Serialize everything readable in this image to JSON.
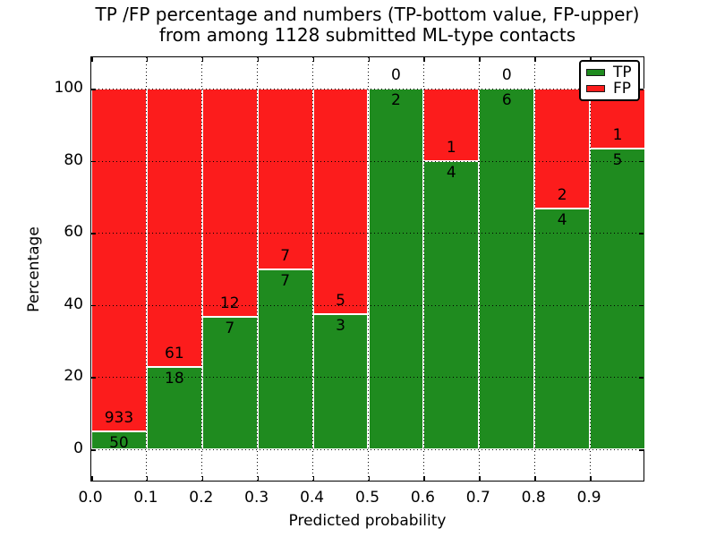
{
  "chart_data": {
    "type": "bar",
    "stacked": true,
    "title_lines": [
      "TP /FP percentage and numbers (TP-bottom value, FP-upper)",
      "from among 1128 submitted ML-type contacts"
    ],
    "xlabel": "Predicted probability",
    "ylabel": "Percentage",
    "bin_edges": [
      0.0,
      0.1,
      0.2,
      0.3,
      0.4,
      0.5,
      0.6,
      0.7,
      0.8,
      0.9,
      1.0
    ],
    "series": [
      {
        "name": "TP",
        "color": "#1f8b1f",
        "counts": [
          50,
          18,
          7,
          7,
          3,
          2,
          4,
          6,
          4,
          5
        ]
      },
      {
        "name": "FP",
        "color": "#fc1c1c",
        "counts": [
          933,
          61,
          12,
          7,
          5,
          0,
          1,
          0,
          2,
          1
        ]
      }
    ],
    "tp_percent": [
      5.1,
      22.8,
      36.8,
      50.0,
      37.5,
      100.0,
      80.0,
      100.0,
      66.7,
      83.3
    ],
    "x_tick_labels": [
      "0.0",
      "0.1",
      "0.2",
      "0.3",
      "0.4",
      "0.5",
      "0.6",
      "0.7",
      "0.8",
      "0.9"
    ],
    "y_tick_labels": [
      "0",
      "20",
      "40",
      "60",
      "80",
      "100"
    ],
    "xlim": [
      0.0,
      1.0
    ],
    "ylim": [
      -9.2,
      108.7
    ],
    "grid": {
      "linestyle": "dotted",
      "color": "#000000"
    },
    "legend": {
      "position": "upper-right",
      "entries": [
        {
          "label": "TP",
          "color": "#1f8b1f"
        },
        {
          "label": "FP",
          "color": "#fc1c1c"
        }
      ]
    },
    "background": "#ffffff"
  }
}
